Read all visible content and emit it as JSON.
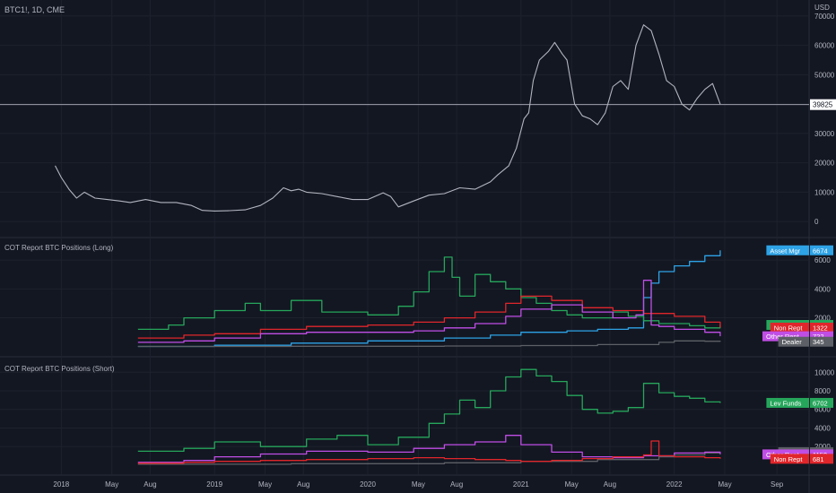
{
  "symbol_title": "BTC1!, 1D, CME",
  "currency": "USD",
  "price_label": "39825",
  "colors": {
    "background": "#131722",
    "grid": "#1e222d",
    "text": "#b2b5be",
    "price_line": "#b2b5be",
    "lev_funds": "#26a65b",
    "asset_mgr": "#2ea3e6",
    "non_rept": "#e0262b",
    "other_rept": "#c04ee6",
    "dealer": "#5d6066"
  },
  "chart_data": [
    {
      "type": "line",
      "title": "BTC1!, 1D, CME",
      "ylabel": "USD",
      "y_ticks": [
        0,
        10000,
        20000,
        30000,
        40000,
        50000,
        60000,
        70000
      ],
      "ylim": [
        -3000,
        73000
      ],
      "x_ticks": [
        "2018",
        "May",
        "Aug",
        "2019",
        "May",
        "Aug",
        "2020",
        "May",
        "Aug",
        "2021",
        "May",
        "Aug",
        "2022",
        "May",
        "Sep"
      ],
      "x_tick_pos": [
        2018.0,
        2018.33,
        2018.58,
        2019.0,
        2019.33,
        2019.58,
        2020.0,
        2020.33,
        2020.58,
        2021.0,
        2021.33,
        2021.58,
        2022.0,
        2022.33,
        2022.67
      ],
      "series": [
        {
          "x": [
            2017.96,
            2018.0,
            2018.05,
            2018.1,
            2018.15,
            2018.22,
            2018.3,
            2018.38,
            2018.45,
            2018.55,
            2018.65,
            2018.75,
            2018.85,
            2018.92,
            2019.0,
            2019.1,
            2019.2,
            2019.3,
            2019.38,
            2019.45,
            2019.5,
            2019.55,
            2019.6,
            2019.7,
            2019.8,
            2019.9,
            2020.0,
            2020.1,
            2020.15,
            2020.2,
            2020.3,
            2020.4,
            2020.5,
            2020.6,
            2020.7,
            2020.8,
            2020.85,
            2020.92,
            2020.97,
            2021.02,
            2021.05,
            2021.08,
            2021.12,
            2021.18,
            2021.22,
            2021.27,
            2021.3,
            2021.35,
            2021.4,
            2021.45,
            2021.5,
            2021.55,
            2021.6,
            2021.65,
            2021.7,
            2021.75,
            2021.8,
            2021.85,
            2021.9,
            2021.95,
            2022.0,
            2022.05,
            2022.1,
            2022.15,
            2022.2,
            2022.25,
            2022.3
          ],
          "y": [
            19000,
            15000,
            11000,
            8000,
            10000,
            8000,
            7500,
            7000,
            6500,
            7500,
            6500,
            6500,
            5500,
            3800,
            3600,
            3700,
            4000,
            5500,
            8000,
            11500,
            10500,
            11000,
            10000,
            9500,
            8500,
            7500,
            7500,
            9800,
            8500,
            5000,
            7000,
            9000,
            9500,
            11500,
            11000,
            13500,
            16000,
            19000,
            25000,
            35000,
            37000,
            48000,
            55000,
            58000,
            61000,
            57000,
            55000,
            40000,
            36000,
            35000,
            33000,
            37000,
            46000,
            48000,
            45000,
            60000,
            67000,
            65000,
            57000,
            48000,
            46000,
            40000,
            38000,
            42000,
            45000,
            47000,
            40000
          ]
        }
      ]
    },
    {
      "type": "line",
      "title": "COT Report BTC Positions (Long)",
      "y_ticks": [
        2000,
        4000,
        6000
      ],
      "ylim": [
        -200,
        7000
      ],
      "series": [
        {
          "name": "Asset Mgr",
          "value_label": "6674",
          "x": [
            2018.5,
            2019.0,
            2019.5,
            2020.0,
            2020.5,
            2020.8,
            2021.0,
            2021.3,
            2021.5,
            2021.7,
            2021.8,
            2021.85,
            2021.9,
            2022.0,
            2022.1,
            2022.2,
            2022.3
          ],
          "y": [
            20,
            100,
            250,
            400,
            600,
            800,
            1000,
            1100,
            1200,
            1300,
            3400,
            4400,
            5200,
            5600,
            5900,
            6300,
            6674
          ]
        },
        {
          "name": "Lev Funds",
          "value_label": "1507",
          "x": [
            2018.5,
            2018.7,
            2018.8,
            2019.0,
            2019.2,
            2019.3,
            2019.5,
            2019.7,
            2020.0,
            2020.2,
            2020.3,
            2020.4,
            2020.5,
            2020.55,
            2020.6,
            2020.7,
            2020.8,
            2020.9,
            2021.0,
            2021.1,
            2021.2,
            2021.3,
            2021.4,
            2021.5,
            2021.6,
            2021.7,
            2021.8,
            2021.9,
            2022.0,
            2022.1,
            2022.2,
            2022.3
          ],
          "y": [
            1200,
            1500,
            2000,
            2500,
            3000,
            2500,
            3200,
            2400,
            2200,
            2800,
            3800,
            5200,
            6200,
            4800,
            3500,
            5000,
            4500,
            4000,
            3400,
            3000,
            2500,
            2200,
            2000,
            2000,
            2400,
            2100,
            1800,
            1600,
            1600,
            1450,
            1300,
            1507
          ]
        },
        {
          "name": "Non Rept",
          "value_label": "1322",
          "x": [
            2018.5,
            2018.8,
            2019.0,
            2019.3,
            2019.6,
            2020.0,
            2020.3,
            2020.5,
            2020.7,
            2020.9,
            2021.0,
            2021.2,
            2021.4,
            2021.6,
            2021.8,
            2022.0,
            2022.2,
            2022.3
          ],
          "y": [
            600,
            800,
            900,
            1200,
            1400,
            1500,
            1700,
            2000,
            2400,
            3000,
            3500,
            3200,
            2700,
            2500,
            2300,
            2100,
            1700,
            1322
          ]
        },
        {
          "name": "Other Rept",
          "value_label": "722",
          "x": [
            2018.5,
            2018.8,
            2019.0,
            2019.3,
            2019.6,
            2020.0,
            2020.3,
            2020.5,
            2020.7,
            2020.9,
            2021.0,
            2021.2,
            2021.4,
            2021.6,
            2021.75,
            2021.8,
            2021.85,
            2021.9,
            2022.0,
            2022.2,
            2022.3
          ],
          "y": [
            300,
            400,
            600,
            900,
            1000,
            1000,
            1100,
            1300,
            1600,
            2100,
            2600,
            2900,
            2400,
            2000,
            2200,
            4600,
            1500,
            1400,
            1200,
            1000,
            722
          ]
        },
        {
          "name": "Dealer",
          "value_label": "345",
          "x": [
            2018.5,
            2019.5,
            2020.5,
            2021.0,
            2021.5,
            2021.9,
            2022.0,
            2022.2,
            2022.3
          ],
          "y": [
            20,
            30,
            50,
            80,
            150,
            300,
            400,
            380,
            345
          ]
        }
      ]
    },
    {
      "type": "line",
      "title": "COT Report BTC Positions (Short)",
      "y_ticks": [
        2000,
        4000,
        6000,
        8000,
        10000
      ],
      "ylim": [
        -300,
        10800
      ],
      "series": [
        {
          "name": "Lev Funds",
          "value_label": "6702",
          "x": [
            2018.5,
            2018.8,
            2019.0,
            2019.3,
            2019.6,
            2019.8,
            2020.0,
            2020.2,
            2020.4,
            2020.5,
            2020.6,
            2020.7,
            2020.8,
            2020.9,
            2021.0,
            2021.1,
            2021.2,
            2021.3,
            2021.4,
            2021.5,
            2021.6,
            2021.7,
            2021.8,
            2021.9,
            2022.0,
            2022.1,
            2022.2,
            2022.3
          ],
          "y": [
            1500,
            1800,
            2500,
            2000,
            2800,
            3200,
            2200,
            3000,
            4500,
            5500,
            7000,
            6200,
            8000,
            9500,
            10300,
            9600,
            9000,
            7500,
            6000,
            5600,
            5800,
            6200,
            8800,
            7800,
            7400,
            7200,
            6800,
            6702
          ]
        },
        {
          "name": "Dealer",
          "value_label": "1393",
          "x": [
            2018.5,
            2019.5,
            2020.5,
            2021.0,
            2021.5,
            2021.9,
            2022.0,
            2022.2,
            2022.3
          ],
          "y": [
            100,
            150,
            250,
            400,
            600,
            900,
            1100,
            1300,
            1393
          ]
        },
        {
          "name": "Other Rept",
          "value_label": "1159",
          "x": [
            2018.5,
            2018.8,
            2019.0,
            2019.3,
            2019.6,
            2020.0,
            2020.3,
            2020.5,
            2020.7,
            2020.9,
            2021.0,
            2021.2,
            2021.4,
            2021.6,
            2021.8,
            2022.0,
            2022.2,
            2022.3
          ],
          "y": [
            300,
            500,
            900,
            1200,
            1500,
            1400,
            1800,
            2200,
            2500,
            3200,
            2200,
            1400,
            900,
            800,
            1000,
            1300,
            1400,
            1159
          ]
        },
        {
          "name": "Non Rept",
          "value_label": "681",
          "x": [
            2018.5,
            2018.8,
            2019.0,
            2019.3,
            2019.6,
            2020.0,
            2020.3,
            2020.5,
            2020.7,
            2020.9,
            2021.0,
            2021.2,
            2021.4,
            2021.6,
            2021.8,
            2021.85,
            2021.9,
            2022.0,
            2022.2,
            2022.3
          ],
          "y": [
            200,
            300,
            400,
            500,
            600,
            700,
            800,
            700,
            600,
            500,
            400,
            500,
            700,
            900,
            1100,
            2600,
            1000,
            900,
            800,
            681
          ]
        }
      ]
    }
  ]
}
